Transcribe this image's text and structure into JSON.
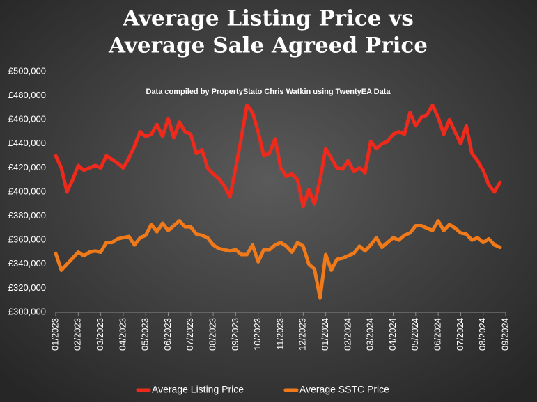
{
  "chart_data": {
    "type": "line",
    "title": [
      "Average Listing Price vs",
      "Average Sale Agreed Price"
    ],
    "subtitle": "Data compiled by PropertyStato Chris Watkin using TwentyEA Data",
    "x": [
      0,
      0.25,
      0.5,
      0.75,
      1,
      1.25,
      1.5,
      1.75,
      2,
      2.25,
      2.5,
      2.75,
      3,
      3.25,
      3.5,
      3.75,
      4,
      4.25,
      4.5,
      4.75,
      5,
      5.25,
      5.5,
      5.75,
      6,
      6.25,
      6.5,
      6.75,
      7,
      7.25,
      7.5,
      7.75,
      8,
      8.25,
      8.5,
      8.75,
      9,
      9.25,
      9.5,
      9.75,
      10,
      10.25,
      10.5,
      10.75,
      11,
      11.25,
      11.5,
      11.75,
      12,
      12.25,
      12.5,
      12.75,
      13,
      13.25,
      13.5,
      13.75,
      14,
      14.25,
      14.5,
      14.75,
      15,
      15.25,
      15.5,
      15.75,
      16,
      16.25,
      16.5,
      16.75,
      17,
      17.25,
      17.5,
      17.75,
      18,
      18.25,
      18.5,
      18.75,
      19,
      19.25,
      19.5,
      19.75
    ],
    "series": [
      {
        "name": "Average Listing Price",
        "color": "#ee2a1c",
        "values": [
          430000,
          420000,
          400000,
          410000,
          422000,
          418000,
          420000,
          422000,
          420000,
          430000,
          427000,
          424000,
          420000,
          428000,
          438000,
          450000,
          446000,
          448000,
          456000,
          446000,
          461000,
          445000,
          458000,
          450000,
          448000,
          432000,
          435000,
          420000,
          415000,
          411000,
          405000,
          396000,
          420000,
          445000,
          472000,
          466000,
          450000,
          430000,
          432000,
          444000,
          420000,
          413000,
          415000,
          410000,
          388000,
          402000,
          390000,
          410000,
          436000,
          428000,
          420000,
          419000,
          426000,
          417000,
          420000,
          416000,
          442000,
          436000,
          440000,
          442000,
          448000,
          450000,
          448000,
          466000,
          455000,
          462000,
          464000,
          472000,
          462000,
          448000,
          460000,
          450000,
          440000,
          455000,
          432000,
          426000,
          418000,
          406000,
          400000,
          408000
        ]
      },
      {
        "name": "Average SSTC Price",
        "color": "#f07a1a",
        "values": [
          349000,
          335000,
          340000,
          345000,
          350000,
          347000,
          350000,
          351000,
          350000,
          358000,
          358000,
          361000,
          362000,
          363000,
          356000,
          362000,
          364000,
          373000,
          367000,
          374000,
          368000,
          372000,
          376000,
          371000,
          371000,
          365000,
          364000,
          362000,
          356000,
          353000,
          352000,
          351000,
          352000,
          348000,
          348000,
          356000,
          342000,
          352000,
          352000,
          356000,
          358000,
          355000,
          350000,
          358000,
          355000,
          340000,
          336000,
          312000,
          348000,
          335000,
          344000,
          345000,
          347000,
          349000,
          355000,
          351000,
          356000,
          362000,
          354000,
          358000,
          362000,
          360000,
          364000,
          366000,
          372000,
          372000,
          370000,
          368000,
          376000,
          368000,
          373000,
          370000,
          366000,
          365000,
          360000,
          362000,
          358000,
          361000,
          356000,
          354000
        ]
      }
    ],
    "xlim": [
      0,
      20
    ],
    "xticks": [
      {
        "value": 0,
        "label": "01/2023"
      },
      {
        "value": 1,
        "label": "02/2023"
      },
      {
        "value": 2,
        "label": "03/2023"
      },
      {
        "value": 3,
        "label": "04/2023"
      },
      {
        "value": 4,
        "label": "05/2023"
      },
      {
        "value": 5,
        "label": "06/2023"
      },
      {
        "value": 6,
        "label": "07/2023"
      },
      {
        "value": 7,
        "label": "08/2023"
      },
      {
        "value": 8,
        "label": "09/2023"
      },
      {
        "value": 9,
        "label": "10/2023"
      },
      {
        "value": 10,
        "label": "11/2023"
      },
      {
        "value": 11,
        "label": "12/2023"
      },
      {
        "value": 12,
        "label": "01/2024"
      },
      {
        "value": 13,
        "label": "02/2024"
      },
      {
        "value": 14,
        "label": "03/2024"
      },
      {
        "value": 15,
        "label": "04/2024"
      },
      {
        "value": 16,
        "label": "05/2024"
      },
      {
        "value": 17,
        "label": "06/2024"
      },
      {
        "value": 18,
        "label": "07/2024"
      },
      {
        "value": 19,
        "label": "08/2024"
      },
      {
        "value": 20,
        "label": "09/2024"
      }
    ],
    "ylim": [
      300000,
      500000
    ],
    "yticks": [
      {
        "value": 300000,
        "label": "£300,000"
      },
      {
        "value": 320000,
        "label": "£320,000"
      },
      {
        "value": 340000,
        "label": "£340,000"
      },
      {
        "value": 360000,
        "label": "£360,000"
      },
      {
        "value": 380000,
        "label": "£380,000"
      },
      {
        "value": 400000,
        "label": "£400,000"
      },
      {
        "value": 420000,
        "label": "£420,000"
      },
      {
        "value": 440000,
        "label": "£440,000"
      },
      {
        "value": 460000,
        "label": "£460,000"
      },
      {
        "value": 480000,
        "label": "£480,000"
      },
      {
        "value": 500000,
        "label": "£500,000"
      }
    ],
    "grid": false,
    "legend": "bottom"
  }
}
